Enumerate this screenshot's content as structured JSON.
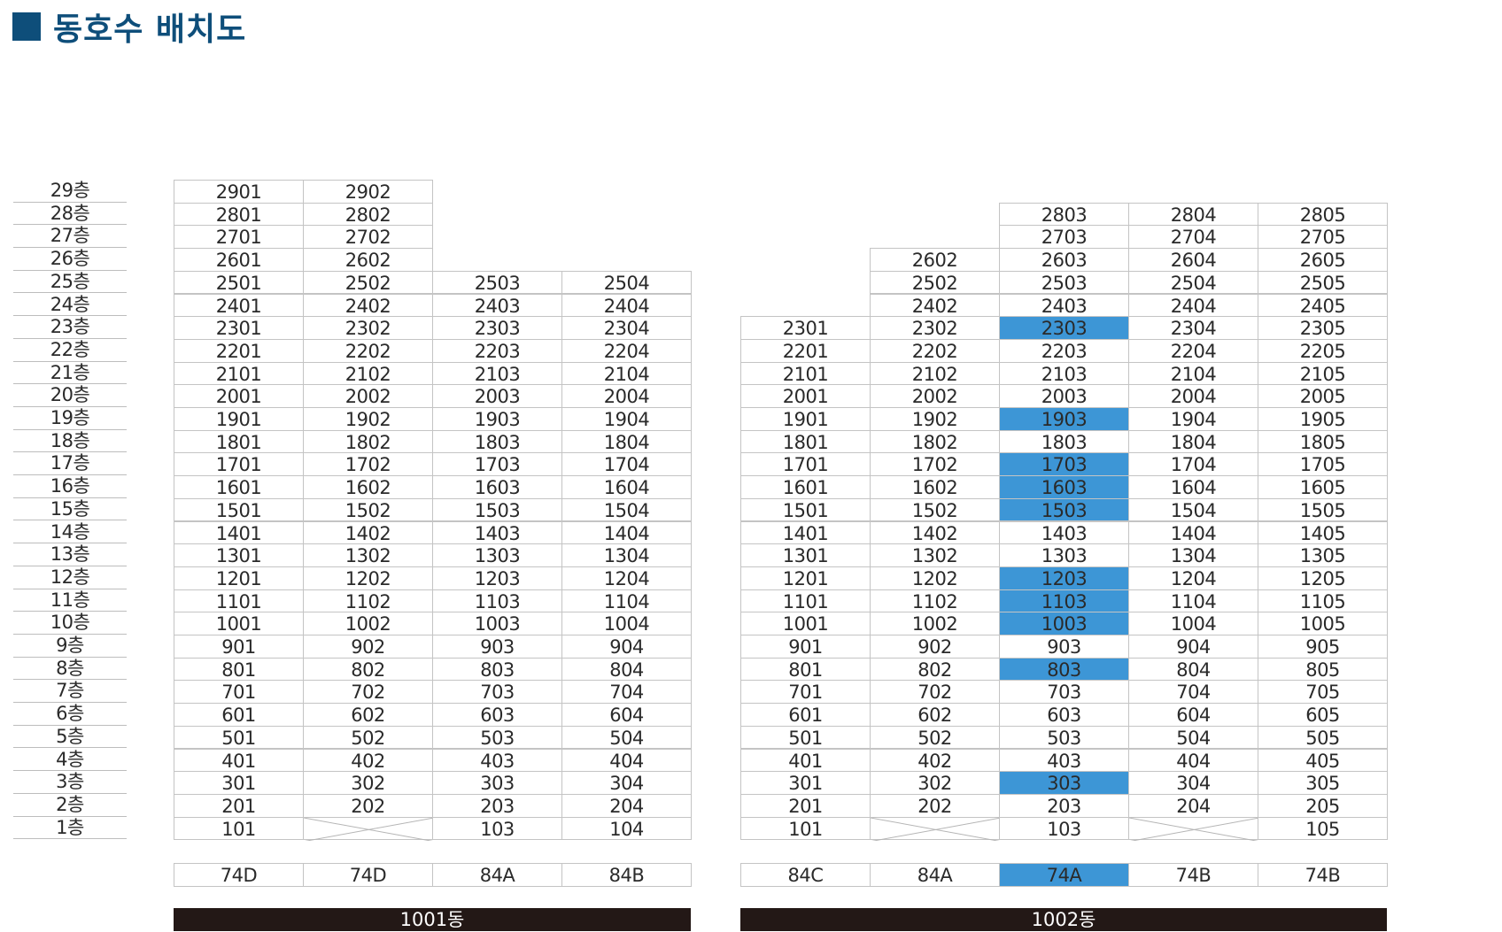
{
  "header": {
    "title": "동호수 배치도"
  },
  "floor_labels": [
    "29층",
    "28층",
    "27층",
    "26층",
    "25층",
    "24층",
    "23층",
    "22층",
    "21층",
    "20층",
    "19층",
    "18층",
    "17층",
    "16층",
    "15층",
    "14층",
    "13층",
    "12층",
    "11층",
    "10층",
    "9층",
    "8층",
    "7층",
    "6층",
    "5층",
    "4층",
    "3층",
    "2층",
    "1층"
  ],
  "building_1001": {
    "name": "1001동",
    "types": [
      "74D",
      "74D",
      "84A",
      "84B"
    ],
    "columns": [
      [
        "2901",
        "2801",
        "2701",
        "2601",
        "2501",
        "2401",
        "2301",
        "2201",
        "2101",
        "2001",
        "1901",
        "1801",
        "1701",
        "1601",
        "1501",
        "1401",
        "1301",
        "1201",
        "1101",
        "1001",
        "901",
        "801",
        "701",
        "601",
        "501",
        "401",
        "301",
        "201",
        "101"
      ],
      [
        "2902",
        "2802",
        "2702",
        "2602",
        "2502",
        "2402",
        "2302",
        "2202",
        "2102",
        "2002",
        "1902",
        "1802",
        "1702",
        "1602",
        "1502",
        "1402",
        "1302",
        "1202",
        "1102",
        "1002",
        "902",
        "802",
        "702",
        "602",
        "502",
        "402",
        "302",
        "202",
        ""
      ],
      [
        "2503",
        "2403",
        "2303",
        "2203",
        "2103",
        "2003",
        "1903",
        "1803",
        "1703",
        "1603",
        "1503",
        "1403",
        "1303",
        "1203",
        "1103",
        "1003",
        "903",
        "803",
        "703",
        "603",
        "503",
        "403",
        "303",
        "203",
        "103"
      ],
      [
        "2504",
        "2404",
        "2304",
        "2204",
        "2104",
        "2004",
        "1904",
        "1804",
        "1704",
        "1604",
        "1504",
        "1404",
        "1304",
        "1204",
        "1104",
        "1004",
        "904",
        "804",
        "704",
        "604",
        "504",
        "404",
        "304",
        "204",
        "104"
      ]
    ],
    "crossed_units": [
      "101호 라인 2열 1층"
    ]
  },
  "building_1002": {
    "name": "1002동",
    "types": [
      "84C",
      "84A",
      "74A",
      "74B",
      "74B"
    ],
    "highlight_type": "74A",
    "highlight_color": "#3d96d6",
    "highlighted_units": [
      "2303",
      "1903",
      "1703",
      "1603",
      "1503",
      "1203",
      "1103",
      "1003",
      "803",
      "303"
    ],
    "columns": [
      [
        "2301",
        "2201",
        "2101",
        "2001",
        "1901",
        "1801",
        "1701",
        "1601",
        "1501",
        "1401",
        "1301",
        "1201",
        "1101",
        "1001",
        "901",
        "801",
        "701",
        "601",
        "501",
        "401",
        "301",
        "201",
        "101"
      ],
      [
        "2602",
        "2502",
        "2402",
        "2302",
        "2202",
        "2102",
        "2002",
        "1902",
        "1802",
        "1702",
        "1602",
        "1502",
        "1402",
        "1302",
        "1202",
        "1102",
        "1002",
        "902",
        "802",
        "702",
        "602",
        "502",
        "402",
        "302",
        "202",
        ""
      ],
      [
        "2803",
        "2703",
        "2603",
        "2503",
        "2403",
        "2303",
        "2203",
        "2103",
        "2003",
        "1903",
        "1803",
        "1703",
        "1603",
        "1503",
        "1403",
        "1303",
        "1203",
        "1103",
        "1003",
        "903",
        "803",
        "703",
        "603",
        "503",
        "403",
        "303",
        "203",
        "103"
      ],
      [
        "2804",
        "2704",
        "2604",
        "2504",
        "2404",
        "2304",
        "2204",
        "2104",
        "2004",
        "1904",
        "1804",
        "1704",
        "1604",
        "1504",
        "1404",
        "1304",
        "1204",
        "1104",
        "1004",
        "904",
        "804",
        "704",
        "604",
        "504",
        "404",
        "304",
        "204",
        ""
      ],
      [
        "2805",
        "2705",
        "2605",
        "2505",
        "2405",
        "2305",
        "2205",
        "2105",
        "2005",
        "1905",
        "1805",
        "1705",
        "1605",
        "1505",
        "1405",
        "1305",
        "1205",
        "1105",
        "1005",
        "905",
        "805",
        "705",
        "605",
        "505",
        "405",
        "305",
        "205",
        "105"
      ]
    ]
  }
}
